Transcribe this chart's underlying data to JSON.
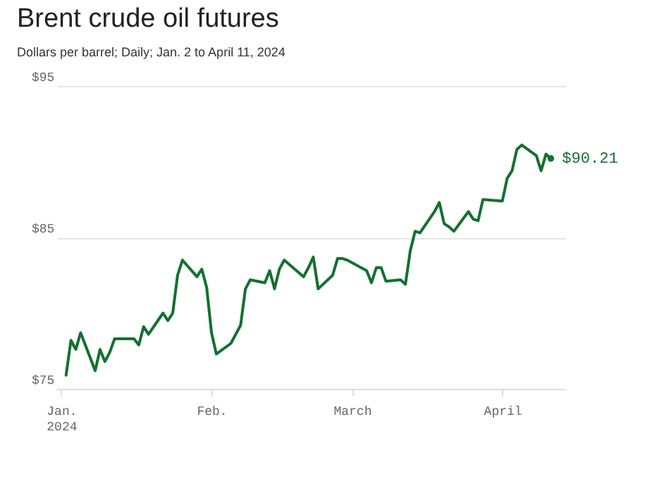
{
  "chart_data": {
    "type": "line",
    "title": "Brent crude oil futures",
    "subtitle": "Dollars per barrel; Daily; Jan. 2 to April 11, 2024",
    "x": [
      "2024-01-02",
      "2024-01-03",
      "2024-01-04",
      "2024-01-05",
      "2024-01-08",
      "2024-01-09",
      "2024-01-10",
      "2024-01-11",
      "2024-01-12",
      "2024-01-16",
      "2024-01-17",
      "2024-01-18",
      "2024-01-19",
      "2024-01-22",
      "2024-01-23",
      "2024-01-24",
      "2024-01-25",
      "2024-01-26",
      "2024-01-29",
      "2024-01-30",
      "2024-01-31",
      "2024-02-01",
      "2024-02-02",
      "2024-02-05",
      "2024-02-06",
      "2024-02-07",
      "2024-02-08",
      "2024-02-09",
      "2024-02-12",
      "2024-02-13",
      "2024-02-14",
      "2024-02-15",
      "2024-02-16",
      "2024-02-20",
      "2024-02-21",
      "2024-02-22",
      "2024-02-23",
      "2024-02-26",
      "2024-02-27",
      "2024-02-28",
      "2024-02-29",
      "2024-03-04",
      "2024-03-05",
      "2024-03-06",
      "2024-03-07",
      "2024-03-08",
      "2024-03-11",
      "2024-03-12",
      "2024-03-13",
      "2024-03-14",
      "2024-03-15",
      "2024-03-18",
      "2024-03-19",
      "2024-03-20",
      "2024-03-21",
      "2024-03-22",
      "2024-03-25",
      "2024-03-26",
      "2024-03-27",
      "2024-03-28",
      "2024-04-01",
      "2024-04-02",
      "2024-04-03",
      "2024-04-04",
      "2024-04-05",
      "2024-04-08",
      "2024-04-09",
      "2024-04-10",
      "2024-04-11"
    ],
    "series": [
      {
        "color": "#13702f",
        "values": [
          75.9,
          78.2,
          77.6,
          78.7,
          76.2,
          77.6,
          76.8,
          77.4,
          78.3,
          78.3,
          77.9,
          79.1,
          78.6,
          80.0,
          79.5,
          80.0,
          82.5,
          83.5,
          82.4,
          82.9,
          81.7,
          78.7,
          77.3,
          78.0,
          78.6,
          79.2,
          81.6,
          82.2,
          82.0,
          82.8,
          81.6,
          82.9,
          83.5,
          82.4,
          83.0,
          83.7,
          81.6,
          82.5,
          83.6,
          83.6,
          83.5,
          82.8,
          82.0,
          83.0,
          83.0,
          82.1,
          82.2,
          81.9,
          84.1,
          85.4,
          85.3,
          86.7,
          87.3,
          85.9,
          85.7,
          85.4,
          86.7,
          86.2,
          86.1,
          87.5,
          87.4,
          88.9,
          89.4,
          90.8,
          91.1,
          90.4,
          89.4,
          90.5,
          90.2
        ]
      },
      {
        "type": "scatter",
        "marker": "circle",
        "x": [
          "2024-04-11"
        ],
        "color": "#13702f",
        "values": [
          90.21
        ]
      }
    ],
    "xlim": [
      "2023-12-31",
      "2024-04-14"
    ],
    "xticks": [
      {
        "value": "2024-01-01",
        "label": "Jan.\n2024"
      },
      {
        "value": "2024-02-01",
        "label": "Feb."
      },
      {
        "value": "2024-03-01",
        "label": "March"
      },
      {
        "value": "2024-04-01",
        "label": "April"
      }
    ],
    "ylim": [
      75,
      95
    ],
    "yticks": [
      {
        "value": 75,
        "label": "$75"
      },
      {
        "value": 85,
        "label": "$85"
      },
      {
        "value": 95,
        "label": "$95"
      }
    ],
    "annotations": [
      {
        "text": "$90.21",
        "x": "2024-04-11",
        "y": 90.21
      }
    ],
    "grid": "y",
    "line_style": "solid"
  }
}
